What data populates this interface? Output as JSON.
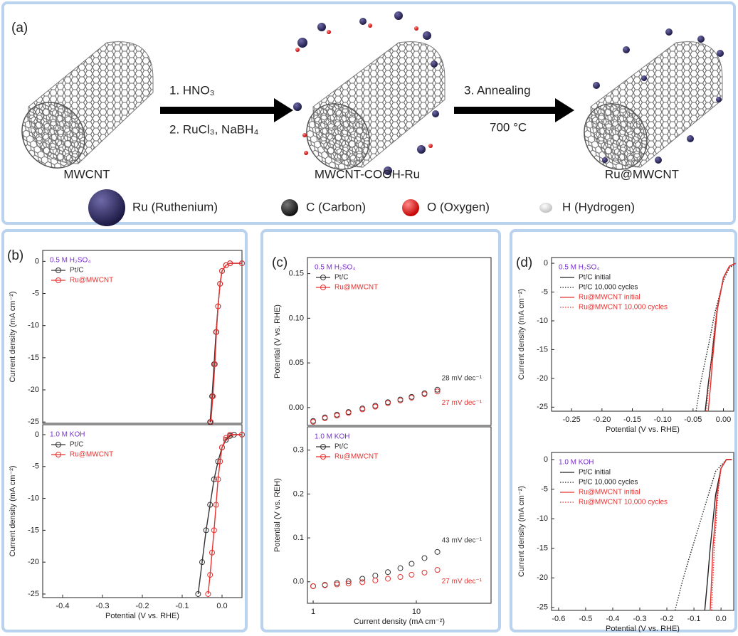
{
  "panel_a": {
    "label": "(a)",
    "products": [
      "MWCNT",
      "MWCNT-COOH-Ru",
      "Ru@MWCNT"
    ],
    "step1": [
      "1. HNO₃",
      "2. RuCl₃, NaBH₄"
    ],
    "step2": [
      "3. Annealing",
      "700 °C"
    ],
    "legend": [
      "Ru (Ruthenium)",
      "C (Carbon)",
      "O (Oxygen)",
      "H (Hydrogen)"
    ]
  },
  "chart_data": [
    {
      "type": "line",
      "panel_label": "(b)",
      "condition": "0.5 M H₂SO₄",
      "ylabel": "Current density (mA cm⁻²)",
      "xlim": [
        -0.45,
        0.05
      ],
      "ylim": [
        -25.2,
        1.7
      ],
      "yticks": [
        0,
        -5,
        -10,
        -15,
        -20,
        -25
      ],
      "series": [
        {
          "name": "Pt/C",
          "color": "#333333",
          "marker": "circle",
          "x": [
            -0.03,
            -0.025,
            -0.02,
            -0.015,
            -0.01,
            -0.005,
            0,
            0.01,
            0.02,
            0.05
          ],
          "values": [
            -25,
            -21,
            -16,
            -11,
            -7,
            -3.5,
            -1.5,
            -0.6,
            -0.3,
            -0.3
          ]
        },
        {
          "name": "Ru@MWCNT",
          "color": "#e8312f",
          "marker": "circle",
          "x": [
            -0.028,
            -0.023,
            -0.018,
            -0.014,
            -0.01,
            -0.005,
            0,
            0.01,
            0.02,
            0.05
          ],
          "values": [
            -25,
            -21,
            -16,
            -11,
            -7,
            -3.5,
            -1.5,
            -0.6,
            -0.3,
            -0.3
          ]
        }
      ]
    },
    {
      "type": "line",
      "condition": "1.0 M KOH",
      "ylabel": "Current density (mA cm⁻²)",
      "xlabel": "Potential (V vs. RHE)",
      "xlim": [
        -0.45,
        0.05
      ],
      "ylim": [
        -25.56,
        1.56
      ],
      "xticks": [
        -0.4,
        -0.3,
        -0.2,
        -0.1,
        {
          "value": 0,
          "label": "0.0"
        }
      ],
      "yticks": [
        0,
        -5,
        -10,
        -15,
        -20,
        -25
      ],
      "series": [
        {
          "name": "Pt/C",
          "color": "#333333",
          "marker": "circle",
          "x": [
            -0.06,
            -0.05,
            -0.04,
            -0.03,
            -0.02,
            -0.01,
            0,
            0.01,
            0.02,
            0.03,
            0.05
          ],
          "values": [
            -25,
            -20,
            -15,
            -11,
            -7,
            -4.2,
            -2,
            -0.8,
            -0.2,
            0,
            0
          ]
        },
        {
          "name": "Ru@MWCNT",
          "color": "#e8312f",
          "marker": "circle",
          "x": [
            -0.035,
            -0.03,
            -0.025,
            -0.02,
            -0.015,
            -0.01,
            -0.005,
            0,
            0.01,
            0.02,
            0.05
          ],
          "values": [
            -25,
            -22,
            -18.5,
            -15,
            -11,
            -7,
            -4.2,
            -2,
            -0.5,
            0,
            0
          ]
        }
      ]
    },
    {
      "type": "line",
      "panel_label": "(c)",
      "condition": "0.5 M H₂SO₄",
      "ylabel": "Potential (V vs. RHE)",
      "xscale": "log",
      "lines": false,
      "xlim": [
        0.88,
        53
      ],
      "ylim": [
        -0.02,
        0.168
      ],
      "yticks": [
        {
          "value": 0,
          "label": "0.00"
        },
        0.05,
        {
          "value": 0.1,
          "label": "0.10"
        },
        0.15
      ],
      "series": [
        {
          "name": "Pt/C",
          "color": "#333333",
          "marker": "circle",
          "annotation": "28 mV dec⁻¹",
          "x": [
            1,
            1.3,
            1.7,
            2.2,
            3,
            4,
            5.3,
            7,
            9,
            12,
            16
          ],
          "values": [
            -0.015,
            -0.011,
            -0.008,
            -0.005,
            -0.001,
            0.002,
            0.006,
            0.009,
            0.012,
            0.016,
            0.02
          ]
        },
        {
          "name": "Ru@MWCNT",
          "color": "#e8312f",
          "marker": "circle",
          "annotation": "27 mV dec⁻¹",
          "x": [
            1,
            1.3,
            1.7,
            2.2,
            3,
            4,
            5.3,
            7,
            9,
            12,
            16
          ],
          "values": [
            -0.016,
            -0.012,
            -0.009,
            -0.006,
            -0.002,
            0.001,
            0.005,
            0.008,
            0.011,
            0.015,
            0.018
          ]
        }
      ]
    },
    {
      "type": "line",
      "condition": "1.0 M KOH",
      "ylabel": "Potential (V vs. REH)",
      "xlabel": "Current density (mA cm⁻²)",
      "xscale": "log",
      "lines": false,
      "xlim": [
        0.88,
        53
      ],
      "ylim": [
        -0.049,
        0.353
      ],
      "xticks": [
        1,
        10
      ],
      "yticks": [
        {
          "value": 0,
          "label": "0.0"
        },
        0.1,
        0.2,
        0.3
      ],
      "series": [
        {
          "name": "Pt/C",
          "color": "#333333",
          "marker": "circle",
          "annotation": "43 mV dec⁻¹",
          "x": [
            1,
            1.3,
            1.7,
            2.2,
            3,
            4,
            5.3,
            7,
            9,
            12,
            16
          ],
          "values": [
            -0.01,
            -0.007,
            -0.003,
            0.001,
            0.007,
            0.014,
            0.022,
            0.031,
            0.041,
            0.054,
            0.068
          ]
        },
        {
          "name": "Ru@MWCNT",
          "color": "#e8312f",
          "marker": "circle",
          "annotation": "27 mV dec⁻¹",
          "x": [
            1,
            1.3,
            1.7,
            2.2,
            3,
            4,
            5.3,
            7,
            9,
            12,
            16
          ],
          "values": [
            -0.01,
            -0.008,
            -0.006,
            -0.004,
            -0.001,
            0.003,
            0.007,
            0.011,
            0.016,
            0.021,
            0.027
          ]
        }
      ]
    },
    {
      "type": "line",
      "panel_label": "(d)",
      "condition": "0.5 M H₂SO₄",
      "ylabel": "Current density (mA cm⁻²)",
      "xlabel": "Potential (V vs. RHE)",
      "xlim": [
        -0.283,
        0.017
      ],
      "ylim": [
        -25.7,
        1
      ],
      "xticks": [
        -0.25,
        {
          "value": -0.2,
          "label": "-0.20"
        },
        -0.15,
        {
          "value": -0.1,
          "label": "-0.10"
        },
        -0.05,
        {
          "value": 0,
          "label": "0.00"
        }
      ],
      "yticks": [
        0,
        -5,
        -10,
        -15,
        -20,
        -25
      ],
      "series": [
        {
          "name": "Pt/C initial",
          "color": "#222222",
          "dash": "solid",
          "x": [
            -0.03,
            -0.025,
            -0.02,
            -0.015,
            -0.01,
            0,
            0.01,
            0.02
          ],
          "values": [
            -25.7,
            -21,
            -17,
            -12.5,
            -8,
            -2.5,
            -0.5,
            0
          ]
        },
        {
          "name": "Pt/C 10,000 cycles",
          "color": "#222222",
          "dash": "dotted",
          "x": [
            -0.045,
            -0.038,
            -0.03,
            -0.022,
            -0.015,
            0,
            0.01,
            0.02
          ],
          "values": [
            -25.7,
            -21,
            -17,
            -13,
            -9,
            -3,
            -0.8,
            0
          ]
        },
        {
          "name": "Ru@MWCNT initial",
          "color": "#e8312f",
          "dash": "solid",
          "x": [
            -0.025,
            -0.021,
            -0.018,
            -0.014,
            -0.01,
            0,
            0.01,
            0.02
          ],
          "values": [
            -25.7,
            -21,
            -17,
            -12.5,
            -8,
            -2.5,
            -0.5,
            0
          ]
        },
        {
          "name": "Ru@MWCNT 10,000 cycles",
          "color": "#e8312f",
          "dash": "dotted",
          "x": [
            -0.028,
            -0.024,
            -0.02,
            -0.016,
            -0.011,
            0,
            0.01,
            0.02
          ],
          "values": [
            -25.7,
            -21,
            -17,
            -12.5,
            -8,
            -2.5,
            -0.5,
            0
          ]
        }
      ]
    },
    {
      "type": "line",
      "condition": "1.0 M KOH",
      "ylabel": "Current density (mA cm⁻²)",
      "xlabel": "Potential (V vs. RHE)",
      "xlim": [
        -0.626,
        0.047
      ],
      "ylim": [
        -25.5,
        1.2
      ],
      "xticks": [
        -0.6,
        -0.5,
        -0.4,
        -0.3,
        -0.2,
        -0.1,
        {
          "value": 0,
          "label": "0.0"
        }
      ],
      "yticks": [
        0,
        -5,
        -10,
        -15,
        -20,
        -25
      ],
      "series": [
        {
          "name": "Pt/C initial",
          "color": "#222222",
          "dash": "solid",
          "x": [
            -0.06,
            -0.05,
            -0.04,
            -0.03,
            -0.02,
            0,
            0.02,
            0.04
          ],
          "values": [
            -25.5,
            -20.5,
            -15,
            -10.5,
            -6,
            -1.5,
            0,
            0
          ]
        },
        {
          "name": "Pt/C 10,000 cycles",
          "color": "#222222",
          "dash": "dotted",
          "x": [
            -0.17,
            -0.145,
            -0.12,
            -0.09,
            -0.06,
            -0.02,
            0.02,
            0.04
          ],
          "values": [
            -25.5,
            -21,
            -17,
            -12.5,
            -8,
            -2,
            0,
            0
          ]
        },
        {
          "name": "Ru@MWCNT initial",
          "color": "#e8312f",
          "dash": "solid",
          "x": [
            -0.04,
            -0.035,
            -0.03,
            -0.022,
            -0.015,
            0,
            0.02,
            0.04
          ],
          "values": [
            -25.5,
            -20.5,
            -15,
            -10.5,
            -6,
            -1.5,
            0,
            0
          ]
        },
        {
          "name": "Ru@MWCNT 10,000 cycles",
          "color": "#e8312f",
          "dash": "dotted",
          "x": [
            -0.035,
            -0.03,
            -0.025,
            -0.018,
            -0.012,
            0,
            0.02,
            0.04
          ],
          "values": [
            -25.5,
            -20.5,
            -15,
            -10.5,
            -6,
            -1.5,
            0,
            0
          ]
        }
      ]
    }
  ]
}
